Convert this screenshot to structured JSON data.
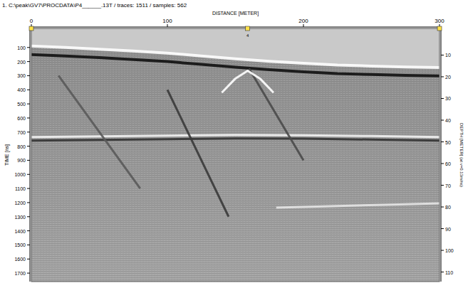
{
  "chart_data": {
    "type": "radargram",
    "title": "1. C:\\peak\\GV7\\PROCDATA\\P4______.13T / traces: 1511 / samples: 562",
    "x_label": "DISTANCE [METER]",
    "y_label": "TIME [ns]",
    "y2_label": "DEPTH [METER] (at v=0.13m/ns)",
    "xlim": [
      0,
      300
    ],
    "xticks": [
      0,
      100,
      200,
      300
    ],
    "ylim": [
      -35,
      1760
    ],
    "yticks": [
      100,
      200,
      300,
      400,
      500,
      600,
      700,
      800,
      900,
      1000,
      1100,
      1200,
      1300,
      1400,
      1500,
      1600,
      1700
    ],
    "y2lim": [
      -2.275,
      114.4
    ],
    "y2ticks": [
      10,
      20,
      30,
      40,
      50,
      60,
      70,
      80,
      90,
      100,
      110
    ],
    "markers": [
      0,
      159,
      300
    ],
    "marker_labels": [
      null,
      "4",
      null
    ],
    "series": [
      {
        "color": "#ffffff",
        "x": [
          0,
          25,
          50,
          75,
          100,
          125,
          150,
          175,
          200,
          225,
          250,
          275,
          300
        ],
        "values": [
          90,
          100,
          112,
          125,
          140,
          160,
          180,
          198,
          212,
          225,
          232,
          238,
          242
        ]
      },
      {
        "color": "#111111",
        "x": [
          0,
          25,
          50,
          75,
          100,
          125,
          150,
          175,
          200,
          225,
          250,
          275,
          300
        ],
        "values": [
          150,
          160,
          172,
          185,
          200,
          220,
          240,
          258,
          272,
          285,
          292,
          298,
          302
        ]
      },
      {
        "color": "#f2f2f2",
        "x": [
          0,
          50,
          100,
          150,
          200,
          250,
          300
        ],
        "values": [
          735,
          730,
          725,
          720,
          722,
          728,
          735
        ]
      },
      {
        "color": "#333333",
        "x": [
          0,
          50,
          100,
          150,
          200,
          250,
          300
        ],
        "values": [
          760,
          755,
          750,
          745,
          747,
          753,
          760
        ]
      },
      {
        "color": "#e6e6e6",
        "x": [
          180,
          220,
          260,
          300
        ],
        "values": [
          1235,
          1225,
          1215,
          1205
        ]
      },
      {
        "color": "#3a3a3a",
        "x": [
          100,
          145
        ],
        "values": [
          400,
          1300
        ]
      },
      {
        "color": "#5a5a5a",
        "x": [
          20,
          80
        ],
        "values": [
          300,
          1100
        ]
      },
      {
        "color": "#4a4a4a",
        "x": [
          160,
          200
        ],
        "values": [
          250,
          900
        ]
      },
      {
        "color": "#ffffff",
        "x": [
          140,
          150,
          159,
          168,
          178
        ],
        "values": [
          420,
          320,
          265,
          320,
          420
        ]
      }
    ]
  }
}
